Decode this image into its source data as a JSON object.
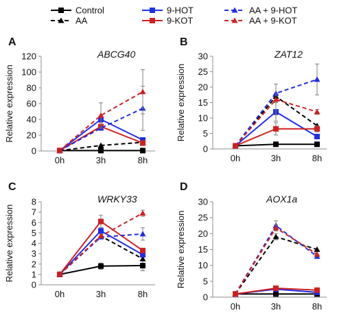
{
  "colors": {
    "control": "#000000",
    "aa": "#000000",
    "hot": "#1f2ee8",
    "kot": "#d02020",
    "axis": "#8c8c8c",
    "error": "#7f7f7f"
  },
  "legend": [
    {
      "name": "Control",
      "key": "control",
      "dash": false,
      "marker": "square"
    },
    {
      "name": "AA",
      "key": "aa",
      "dash": true,
      "marker": "triangle"
    },
    {
      "name": "9-HOT",
      "key": "hot",
      "dash": false,
      "marker": "square"
    },
    {
      "name": "9-KOT",
      "key": "kot",
      "dash": false,
      "marker": "square"
    },
    {
      "name": "AA + 9-HOT",
      "key": "hot",
      "dash": true,
      "marker": "triangle"
    },
    {
      "name": "AA + 9-KOT",
      "key": "kot",
      "dash": true,
      "marker": "triangle"
    }
  ],
  "chart_data": [
    {
      "type": "line",
      "panel": "A",
      "title": "ABCG40",
      "ylabel": "Relative expression",
      "categories": [
        "0h",
        "3h",
        "8h"
      ],
      "ylim": [
        0,
        120
      ],
      "yticks": [
        0,
        20,
        40,
        60,
        80,
        100,
        120
      ],
      "series": [
        {
          "name": "Control",
          "values": [
            0.5,
            0.5,
            0.5
          ],
          "err": [
            0,
            0,
            0
          ]
        },
        {
          "name": "AA",
          "values": [
            0.5,
            7,
            11
          ],
          "err": [
            0,
            0,
            0
          ]
        },
        {
          "name": "9-HOT",
          "values": [
            0.5,
            40,
            14
          ],
          "err": [
            0,
            0,
            0
          ]
        },
        {
          "name": "9-KOT",
          "values": [
            0.5,
            31,
            10
          ],
          "err": [
            0,
            5,
            0
          ]
        },
        {
          "name": "AA + 9-HOT",
          "values": [
            0.5,
            29,
            54
          ],
          "err": [
            0,
            0,
            28
          ]
        },
        {
          "name": "AA + 9-KOT",
          "values": [
            0.5,
            45,
            75
          ],
          "err": [
            0,
            16,
            28
          ]
        }
      ]
    },
    {
      "type": "line",
      "panel": "B",
      "title": "ZAT12",
      "ylabel": "Relative expression",
      "categories": [
        "0h",
        "3h",
        "8h"
      ],
      "ylim": [
        0,
        30
      ],
      "yticks": [
        0,
        5,
        10,
        15,
        20,
        25,
        30
      ],
      "series": [
        {
          "name": "Control",
          "values": [
            1,
            1.5,
            1.5
          ],
          "err": [
            0,
            0,
            0
          ]
        },
        {
          "name": "AA",
          "values": [
            1,
            17,
            7.5
          ],
          "err": [
            0,
            0,
            0
          ]
        },
        {
          "name": "9-HOT",
          "values": [
            1,
            12,
            4
          ],
          "err": [
            0,
            3,
            0
          ]
        },
        {
          "name": "9-KOT",
          "values": [
            1,
            6.5,
            6.5
          ],
          "err": [
            0,
            2,
            1
          ]
        },
        {
          "name": "AA + 9-HOT",
          "values": [
            1,
            18,
            22.5
          ],
          "err": [
            0,
            3,
            5
          ]
        },
        {
          "name": "AA + 9-KOT",
          "values": [
            1,
            16,
            12
          ],
          "err": [
            0,
            5,
            0.8
          ]
        }
      ]
    },
    {
      "type": "line",
      "panel": "C",
      "title": "WRKY33",
      "ylabel": "Relative expression",
      "categories": [
        "0h",
        "3h",
        "8h"
      ],
      "ylim": [
        0,
        8
      ],
      "yticks": [
        0,
        1,
        2,
        3,
        4,
        5,
        6,
        7,
        8
      ],
      "series": [
        {
          "name": "Control",
          "values": [
            1,
            1.8,
            1.85
          ],
          "err": [
            0.1,
            0.3,
            0.5
          ]
        },
        {
          "name": "AA",
          "values": [
            1,
            4.7,
            2.5
          ],
          "err": [
            0,
            0,
            0
          ]
        },
        {
          "name": "9-HOT",
          "values": [
            1,
            5.2,
            2.9
          ],
          "err": [
            0,
            0.3,
            0
          ]
        },
        {
          "name": "9-KOT",
          "values": [
            1,
            6.1,
            3.3
          ],
          "err": [
            0,
            0.6,
            0
          ]
        },
        {
          "name": "AA + 9-HOT",
          "values": [
            1,
            4.6,
            4.9
          ],
          "err": [
            0,
            0,
            0.6
          ]
        },
        {
          "name": "AA + 9-KOT",
          "values": [
            1,
            4.7,
            6.9
          ],
          "err": [
            0,
            0,
            0.3
          ]
        }
      ]
    },
    {
      "type": "line",
      "panel": "D",
      "title": "AOX1a",
      "ylabel": "Relative expression",
      "categories": [
        "0h",
        "3h",
        "8h"
      ],
      "ylim": [
        0,
        30
      ],
      "yticks": [
        0,
        5,
        10,
        15,
        20,
        25,
        30
      ],
      "series": [
        {
          "name": "Control",
          "values": [
            1,
            1,
            1
          ],
          "err": [
            0,
            0,
            0
          ]
        },
        {
          "name": "AA",
          "values": [
            1,
            19,
            15
          ],
          "err": [
            0,
            1,
            0
          ]
        },
        {
          "name": "9-HOT",
          "values": [
            1,
            2.5,
            1.5
          ],
          "err": [
            0,
            0,
            0
          ]
        },
        {
          "name": "9-KOT",
          "values": [
            1,
            2.8,
            2.2
          ],
          "err": [
            0,
            0,
            0
          ]
        },
        {
          "name": "AA + 9-HOT",
          "values": [
            1,
            22.5,
            12.8
          ],
          "err": [
            0,
            1.5,
            0
          ]
        },
        {
          "name": "AA + 9-KOT",
          "values": [
            1,
            21.8,
            13.5
          ],
          "err": [
            0,
            1,
            0
          ]
        }
      ]
    }
  ]
}
